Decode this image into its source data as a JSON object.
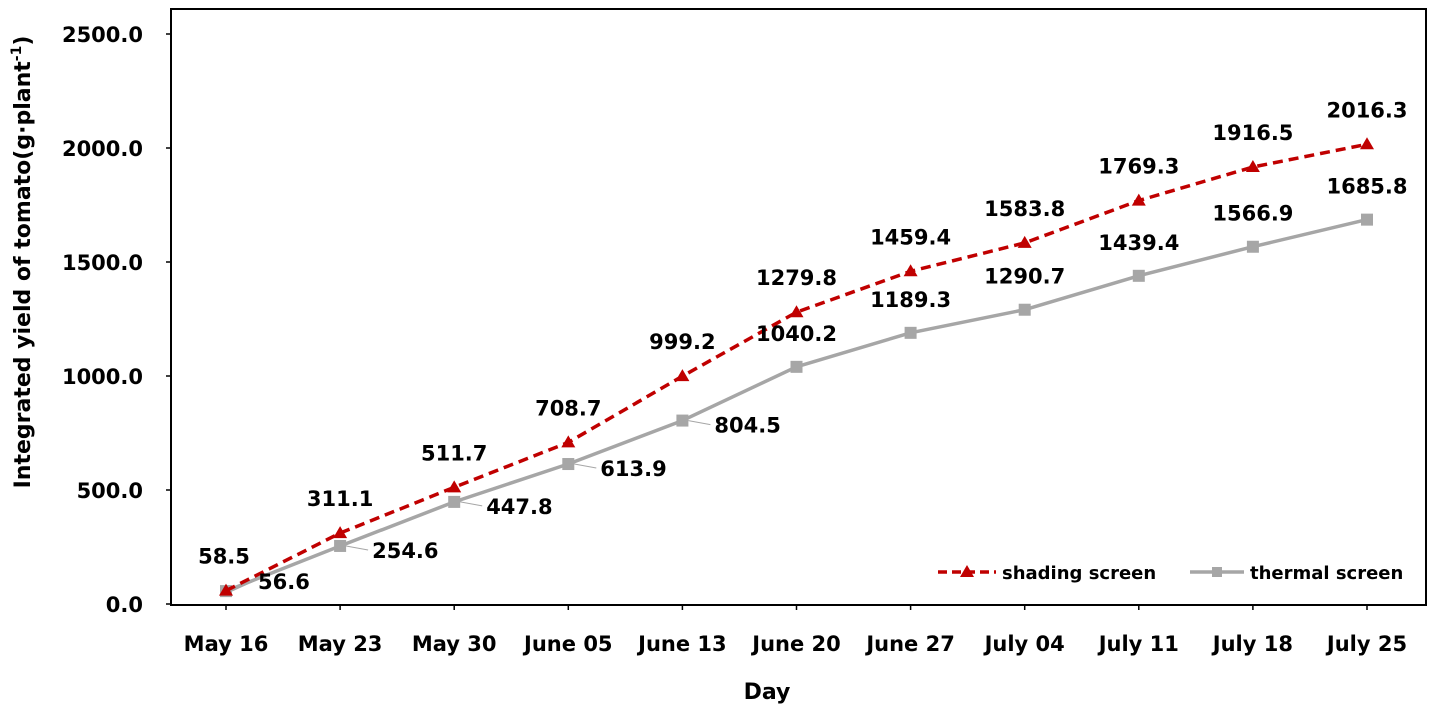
{
  "chart_data": {
    "type": "line",
    "title": "",
    "xlabel": "Day",
    "ylabel_main": "Integrated yield of tomato(g·plant",
    "ylabel_sup": "-1",
    "ylabel_close": ")",
    "ylim": [
      0,
      2500
    ],
    "yticks": [
      {
        "value": 0,
        "label": "0.0"
      },
      {
        "value": 500,
        "label": "500.0"
      },
      {
        "value": 1000,
        "label": "1000.0"
      },
      {
        "value": 1500,
        "label": "1500.0"
      },
      {
        "value": 2000,
        "label": "2000.0"
      },
      {
        "value": 2500,
        "label": "2500.0"
      }
    ],
    "categories": [
      "May 16",
      "May 23",
      "May 30",
      "June 05",
      "June 13",
      "June 20",
      "June 27",
      "July 04",
      "July 11",
      "July 18",
      "July 25"
    ],
    "grid": false,
    "legend_position": "bottom-right",
    "series": [
      {
        "name": "shading screen",
        "color": "#c00000",
        "line_style": "dashed",
        "marker": "triangle",
        "values": [
          58.5,
          311.1,
          511.7,
          708.7,
          999.2,
          1279.8,
          1459.4,
          1583.8,
          1769.3,
          1916.5,
          2016.3
        ],
        "labels": [
          "58.5",
          "311.1",
          "511.7",
          "708.7",
          "999.2",
          "1279.8",
          "1459.4",
          "1583.8",
          "1769.3",
          "1916.5",
          "2016.3"
        ]
      },
      {
        "name": "thermal screen",
        "color": "#a6a6a6",
        "line_style": "solid",
        "marker": "square",
        "values": [
          56.6,
          254.6,
          447.8,
          613.9,
          804.5,
          1040.2,
          1189.3,
          1290.7,
          1439.4,
          1566.9,
          1685.8
        ],
        "labels": [
          "56.6",
          "254.6",
          "447.8",
          "613.9",
          "804.5",
          "1040.2",
          "1189.3",
          "1290.7",
          "1439.4",
          "1566.9",
          "1685.8"
        ]
      }
    ]
  }
}
